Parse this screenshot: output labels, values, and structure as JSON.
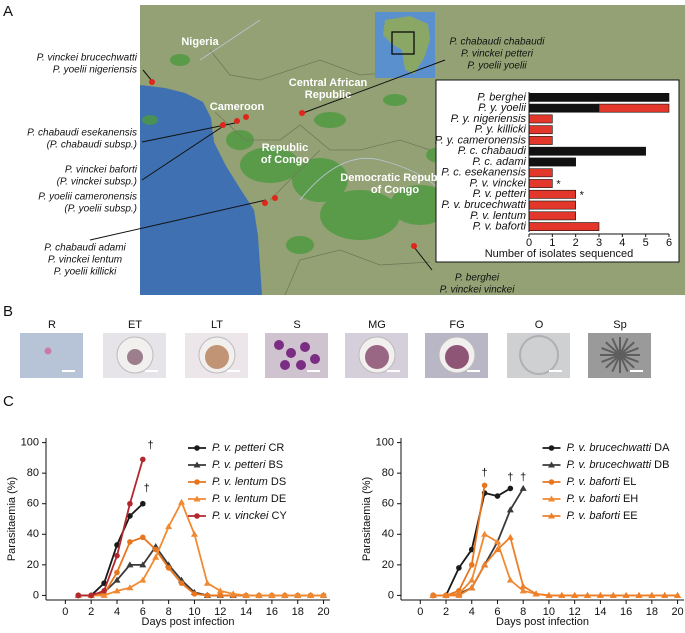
{
  "panels": [
    "A",
    "B",
    "C"
  ],
  "map": {
    "countries": [
      {
        "lines": [
          "Nigeria"
        ]
      },
      {
        "lines": [
          "Cameroon"
        ]
      },
      {
        "lines": [
          "Central African",
          "Republic"
        ]
      },
      {
        "lines": [
          "Republic",
          "of Congo"
        ]
      },
      {
        "lines": [
          "Democratic Republic",
          "of Congo"
        ]
      }
    ],
    "callouts": [
      {
        "lines": [
          "P. vinckei brucechwatti",
          "P. yoelii nigeriensis"
        ]
      },
      {
        "lines": [
          "P. chabaudi esekanensis",
          "(P. chabaudi subsp.)"
        ]
      },
      {
        "lines": [
          "P. vinckei baforti",
          "(P. vinckei subsp.)"
        ]
      },
      {
        "lines": [
          "P. yoelii cameronensis",
          "(P. yoelii subsp.)"
        ]
      },
      {
        "lines": [
          "P. chabaudi adami",
          "P. vinckei lentum",
          "P. yoelii killicki"
        ]
      },
      {
        "lines": [
          "P. chabaudi chabaudi",
          "P. vinckei petteri",
          "P. yoelii yoelii"
        ]
      },
      {
        "lines": [
          "P. berghei",
          "P. vinckei vinckei"
        ]
      }
    ]
  },
  "cell_types": [
    "R",
    "ET",
    "LT",
    "S",
    "MG",
    "FG",
    "O",
    "Sp"
  ],
  "chart_data": [
    {
      "type": "bar",
      "orientation": "horizontal",
      "stacked": true,
      "categories": [
        "P. berghei",
        "P. y. yoelii",
        "P. y. nigeriensis",
        "P. y. killicki",
        "P. y. cameronensis",
        "P. c. chabaudi",
        "P. c. adami",
        "P. c. esekanensis",
        "P. v. vinckei",
        "P. v. petteri",
        "P. v. brucechwatti",
        "P. v. lentum",
        "P. v. baforti"
      ],
      "series": [
        {
          "color": "#111111",
          "values": [
            6,
            3,
            0,
            0,
            0,
            5,
            2,
            0,
            0,
            0,
            0,
            0,
            0
          ]
        },
        {
          "color": "#e2372a",
          "values": [
            0,
            3,
            1,
            1,
            1,
            0,
            0,
            1,
            1,
            2,
            2,
            2,
            3
          ]
        }
      ],
      "xlim": [
        0,
        6
      ],
      "xticks": [
        0,
        1,
        2,
        3,
        4,
        5,
        6
      ],
      "xlabel": "Number of isolates sequenced",
      "annotations": [
        {
          "text": "*",
          "category": "P. v. vinckei"
        },
        {
          "text": "*",
          "category": "P. v. petteri"
        }
      ]
    },
    {
      "type": "line",
      "x": [
        1,
        2,
        3,
        4,
        5,
        6,
        7,
        8,
        9,
        10,
        11,
        12,
        13,
        14,
        15,
        16,
        17,
        18,
        19,
        20
      ],
      "series": [
        {
          "name": "P. v. petteri",
          "clone": "CR",
          "color": "#1a1a1a",
          "marker": "circle",
          "values": [
            0,
            0,
            8,
            33,
            52,
            60,
            null,
            null,
            null,
            null,
            null,
            null,
            null,
            null,
            null,
            null,
            null,
            null,
            null,
            null
          ]
        },
        {
          "name": "P. v. petteri",
          "clone": "BS",
          "color": "#3a3a3a",
          "marker": "triangle",
          "values": [
            0,
            0,
            2,
            10,
            20,
            20,
            32,
            20,
            10,
            2,
            0,
            0,
            0,
            0,
            0,
            0,
            0,
            0,
            0,
            0
          ]
        },
        {
          "name": "P. v. lentum",
          "clone": "DS",
          "color": "#e8761e",
          "marker": "circle",
          "values": [
            0,
            0,
            1,
            15,
            35,
            38,
            30,
            18,
            8,
            1,
            0,
            0,
            0,
            0,
            0,
            0,
            0,
            0,
            0,
            0
          ]
        },
        {
          "name": "P. v. lentum",
          "clone": "DE",
          "color": "#f08a32",
          "marker": "triangle",
          "values": [
            0,
            0,
            0,
            3,
            5,
            10,
            25,
            45,
            61,
            40,
            8,
            3,
            1,
            0,
            0,
            0,
            0,
            0,
            0,
            0
          ]
        },
        {
          "name": "P. v. vinckei",
          "clone": "CY",
          "color": "#b2282e",
          "marker": "circle",
          "values": [
            0,
            0,
            3,
            26,
            60,
            89,
            null,
            null,
            null,
            null,
            null,
            null,
            null,
            null,
            null,
            null,
            null,
            null,
            null,
            null
          ]
        }
      ],
      "xlim": [
        -1.5,
        20.5
      ],
      "xticks": [
        0,
        2,
        4,
        6,
        8,
        10,
        12,
        14,
        16,
        18,
        20
      ],
      "ylim": [
        -3,
        103
      ],
      "yticks": [
        0,
        20,
        40,
        60,
        80,
        100
      ],
      "xlabel": "Days post infection",
      "ylabel": "Parasitaemia (%)",
      "legend": "upper right",
      "annotations": [
        {
          "text": "†",
          "x": 6.6,
          "y": 98
        },
        {
          "text": "†",
          "x": 6.3,
          "y": 70
        }
      ]
    },
    {
      "type": "line",
      "x": [
        1,
        2,
        3,
        4,
        5,
        6,
        7,
        8,
        9,
        10,
        11,
        12,
        13,
        14,
        15,
        16,
        17,
        18,
        19,
        20
      ],
      "series": [
        {
          "name": "P. v. brucechwatti",
          "clone": "DA",
          "color": "#1a1a1a",
          "marker": "circle",
          "values": [
            0,
            0,
            18,
            30,
            67,
            65,
            70,
            null,
            null,
            null,
            null,
            null,
            null,
            null,
            null,
            null,
            null,
            null,
            null,
            null
          ]
        },
        {
          "name": "P. v. brucechwatti",
          "clone": "DB",
          "color": "#3a3a3a",
          "marker": "triangle",
          "values": [
            0,
            0,
            1,
            5,
            20,
            35,
            56,
            70,
            null,
            null,
            null,
            null,
            null,
            null,
            null,
            null,
            null,
            null,
            null,
            null
          ]
        },
        {
          "name": "P. v. baforti",
          "clone": "EL",
          "color": "#e8761e",
          "marker": "circle",
          "values": [
            0,
            0,
            3,
            20,
            72,
            null,
            null,
            null,
            null,
            null,
            null,
            null,
            null,
            null,
            null,
            null,
            null,
            null,
            null,
            null
          ]
        },
        {
          "name": "P. v. baforti",
          "clone": "EH",
          "color": "#f08a32",
          "marker": "triangle",
          "values": [
            0,
            0,
            1,
            10,
            40,
            35,
            10,
            3,
            1,
            0,
            0,
            0,
            0,
            0,
            0,
            0,
            0,
            0,
            0,
            0
          ]
        },
        {
          "name": "P. v. baforti",
          "clone": "EE",
          "color": "#ee7f28",
          "marker": "triangle",
          "values": [
            0,
            0,
            0,
            5,
            20,
            30,
            38,
            6,
            1,
            0,
            0,
            0,
            0,
            0,
            0,
            0,
            0,
            0,
            0,
            0
          ]
        }
      ],
      "xlim": [
        -1.5,
        20.5
      ],
      "xticks": [
        0,
        2,
        4,
        6,
        8,
        10,
        12,
        14,
        16,
        18,
        20
      ],
      "ylim": [
        -3,
        103
      ],
      "yticks": [
        0,
        20,
        40,
        60,
        80,
        100
      ],
      "xlabel": "Days post infection",
      "ylabel": "Parasitaemia (%)",
      "legend": "upper right",
      "annotations": [
        {
          "text": "†",
          "x": 5,
          "y": 80
        },
        {
          "text": "†",
          "x": 7,
          "y": 77
        },
        {
          "text": "†",
          "x": 8,
          "y": 77
        }
      ]
    }
  ]
}
